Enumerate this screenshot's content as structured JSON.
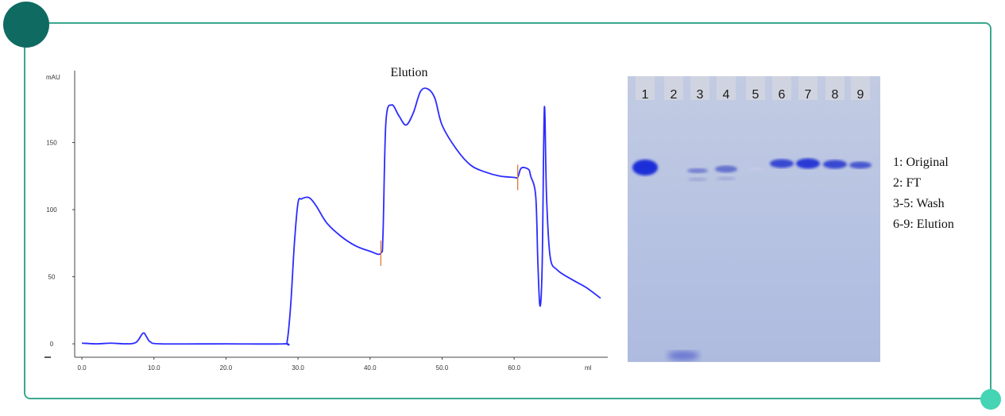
{
  "chart_data": {
    "type": "line",
    "title": "Elution",
    "xlabel": "ml",
    "ylabel": "mAU",
    "xlim": [
      -1,
      73
    ],
    "ylim": [
      -10,
      200
    ],
    "x_ticks": [
      "0.0",
      "10.0",
      "20.0",
      "30.0",
      "40.0",
      "50.0",
      "60.0"
    ],
    "x_tick_values": [
      0,
      10,
      20,
      30,
      40,
      50,
      60
    ],
    "y_ticks": [
      "0",
      "50",
      "100",
      "150"
    ],
    "y_tick_values": [
      0,
      50,
      100,
      150
    ],
    "grid": false,
    "series": [
      {
        "color": "#2b2bff",
        "points": [
          [
            0,
            0.5
          ],
          [
            2,
            0
          ],
          [
            4,
            0.5
          ],
          [
            6,
            0
          ],
          [
            7.5,
            1
          ],
          [
            8.5,
            8
          ],
          [
            9,
            5
          ],
          [
            9.5,
            1.5
          ],
          [
            11,
            0
          ],
          [
            20,
            0
          ],
          [
            28,
            0
          ],
          [
            28.5,
            2
          ],
          [
            29,
            30
          ],
          [
            29.5,
            75
          ],
          [
            30,
            105
          ],
          [
            30.5,
            108
          ],
          [
            31.5,
            109
          ],
          [
            32.5,
            103
          ],
          [
            34,
            90
          ],
          [
            36,
            80
          ],
          [
            38,
            73
          ],
          [
            40,
            69
          ],
          [
            41.5,
            67.5
          ],
          [
            41.8,
            82
          ],
          [
            42.2,
            165
          ],
          [
            43,
            178
          ],
          [
            44,
            170
          ],
          [
            45,
            163
          ],
          [
            46,
            172
          ],
          [
            47,
            188
          ],
          [
            48,
            190
          ],
          [
            49,
            183
          ],
          [
            50,
            163
          ],
          [
            52,
            145
          ],
          [
            54,
            133
          ],
          [
            56,
            128
          ],
          [
            58,
            125
          ],
          [
            60,
            124
          ],
          [
            60.5,
            124
          ],
          [
            61,
            131
          ],
          [
            62,
            130
          ],
          [
            62.3,
            125
          ],
          [
            63,
            110
          ],
          [
            63.3,
            60
          ],
          [
            63.6,
            28
          ],
          [
            63.9,
            60
          ],
          [
            64.2,
            176
          ],
          [
            64.5,
            110
          ],
          [
            65,
            65
          ],
          [
            66,
            55
          ],
          [
            68,
            48
          ],
          [
            70,
            42
          ],
          [
            72,
            34
          ]
        ]
      }
    ],
    "markers": [
      {
        "x": 41.5,
        "y": 67.5
      },
      {
        "x": 60.5,
        "y": 124
      }
    ]
  },
  "gel": {
    "lanes": [
      "1",
      "2",
      "3",
      "4",
      "5",
      "6",
      "7",
      "8",
      "9"
    ]
  },
  "legend": [
    "1: Original",
    "2:  FT",
    "3-5: Wash",
    "6-9: Elution"
  ],
  "colors": {
    "frame": "#3aa88e",
    "corner_dark": "#0f6a62",
    "corner_light": "#45d4b4",
    "trace": "#2b2bff",
    "marker": "#e07a3a",
    "gel_bg": "#b8c4e0",
    "band": "#2a3fd0"
  }
}
